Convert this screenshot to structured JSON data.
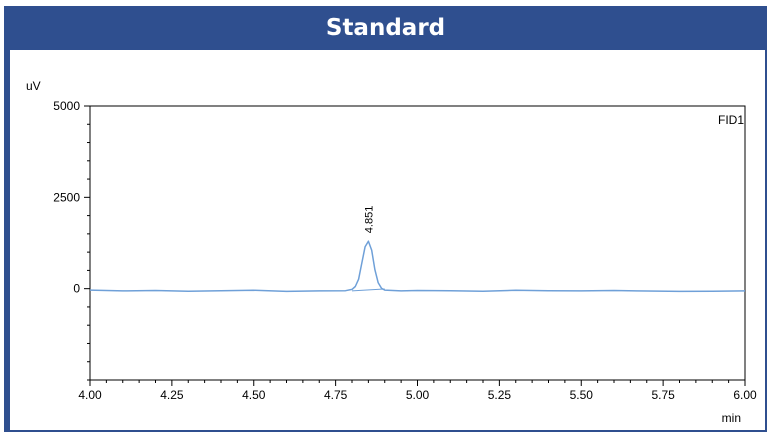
{
  "panel_title": "Standard",
  "chart_data": {
    "type": "line",
    "title": "",
    "ylabel": "uV",
    "xlabel": "min",
    "detector_label": "FID1",
    "xlim": [
      4.0,
      6.0
    ],
    "ylim": [
      -2500,
      5000
    ],
    "x_ticks": [
      "4.00",
      "4.25",
      "4.50",
      "4.75",
      "5.00",
      "5.25",
      "5.50",
      "5.75",
      "6.00"
    ],
    "y_ticks": [
      "5000",
      "2500",
      "0"
    ],
    "grid": false,
    "series": [
      {
        "color": "#6fa0d8",
        "x": [
          4.0,
          4.1,
          4.2,
          4.3,
          4.4,
          4.5,
          4.6,
          4.7,
          4.78,
          4.8,
          4.81,
          4.82,
          4.83,
          4.84,
          4.85,
          4.86,
          4.87,
          4.88,
          4.89,
          4.9,
          4.95,
          5.0,
          5.1,
          5.2,
          5.3,
          5.4,
          5.5,
          5.6,
          5.7,
          5.8,
          5.9,
          6.0
        ],
        "y": [
          -40,
          -60,
          -50,
          -70,
          -55,
          -45,
          -75,
          -60,
          -55,
          -20,
          60,
          260,
          700,
          1150,
          1300,
          1050,
          520,
          160,
          10,
          -40,
          -60,
          -50,
          -55,
          -70,
          -45,
          -55,
          -60,
          -50,
          -65,
          -75,
          -70,
          -60
        ]
      }
    ],
    "annotations": [
      {
        "text": "4.851",
        "x": 4.851,
        "y": 1300
      }
    ],
    "baseline": {
      "x": [
        4.8,
        4.9
      ],
      "y": [
        -60,
        -10
      ]
    }
  }
}
